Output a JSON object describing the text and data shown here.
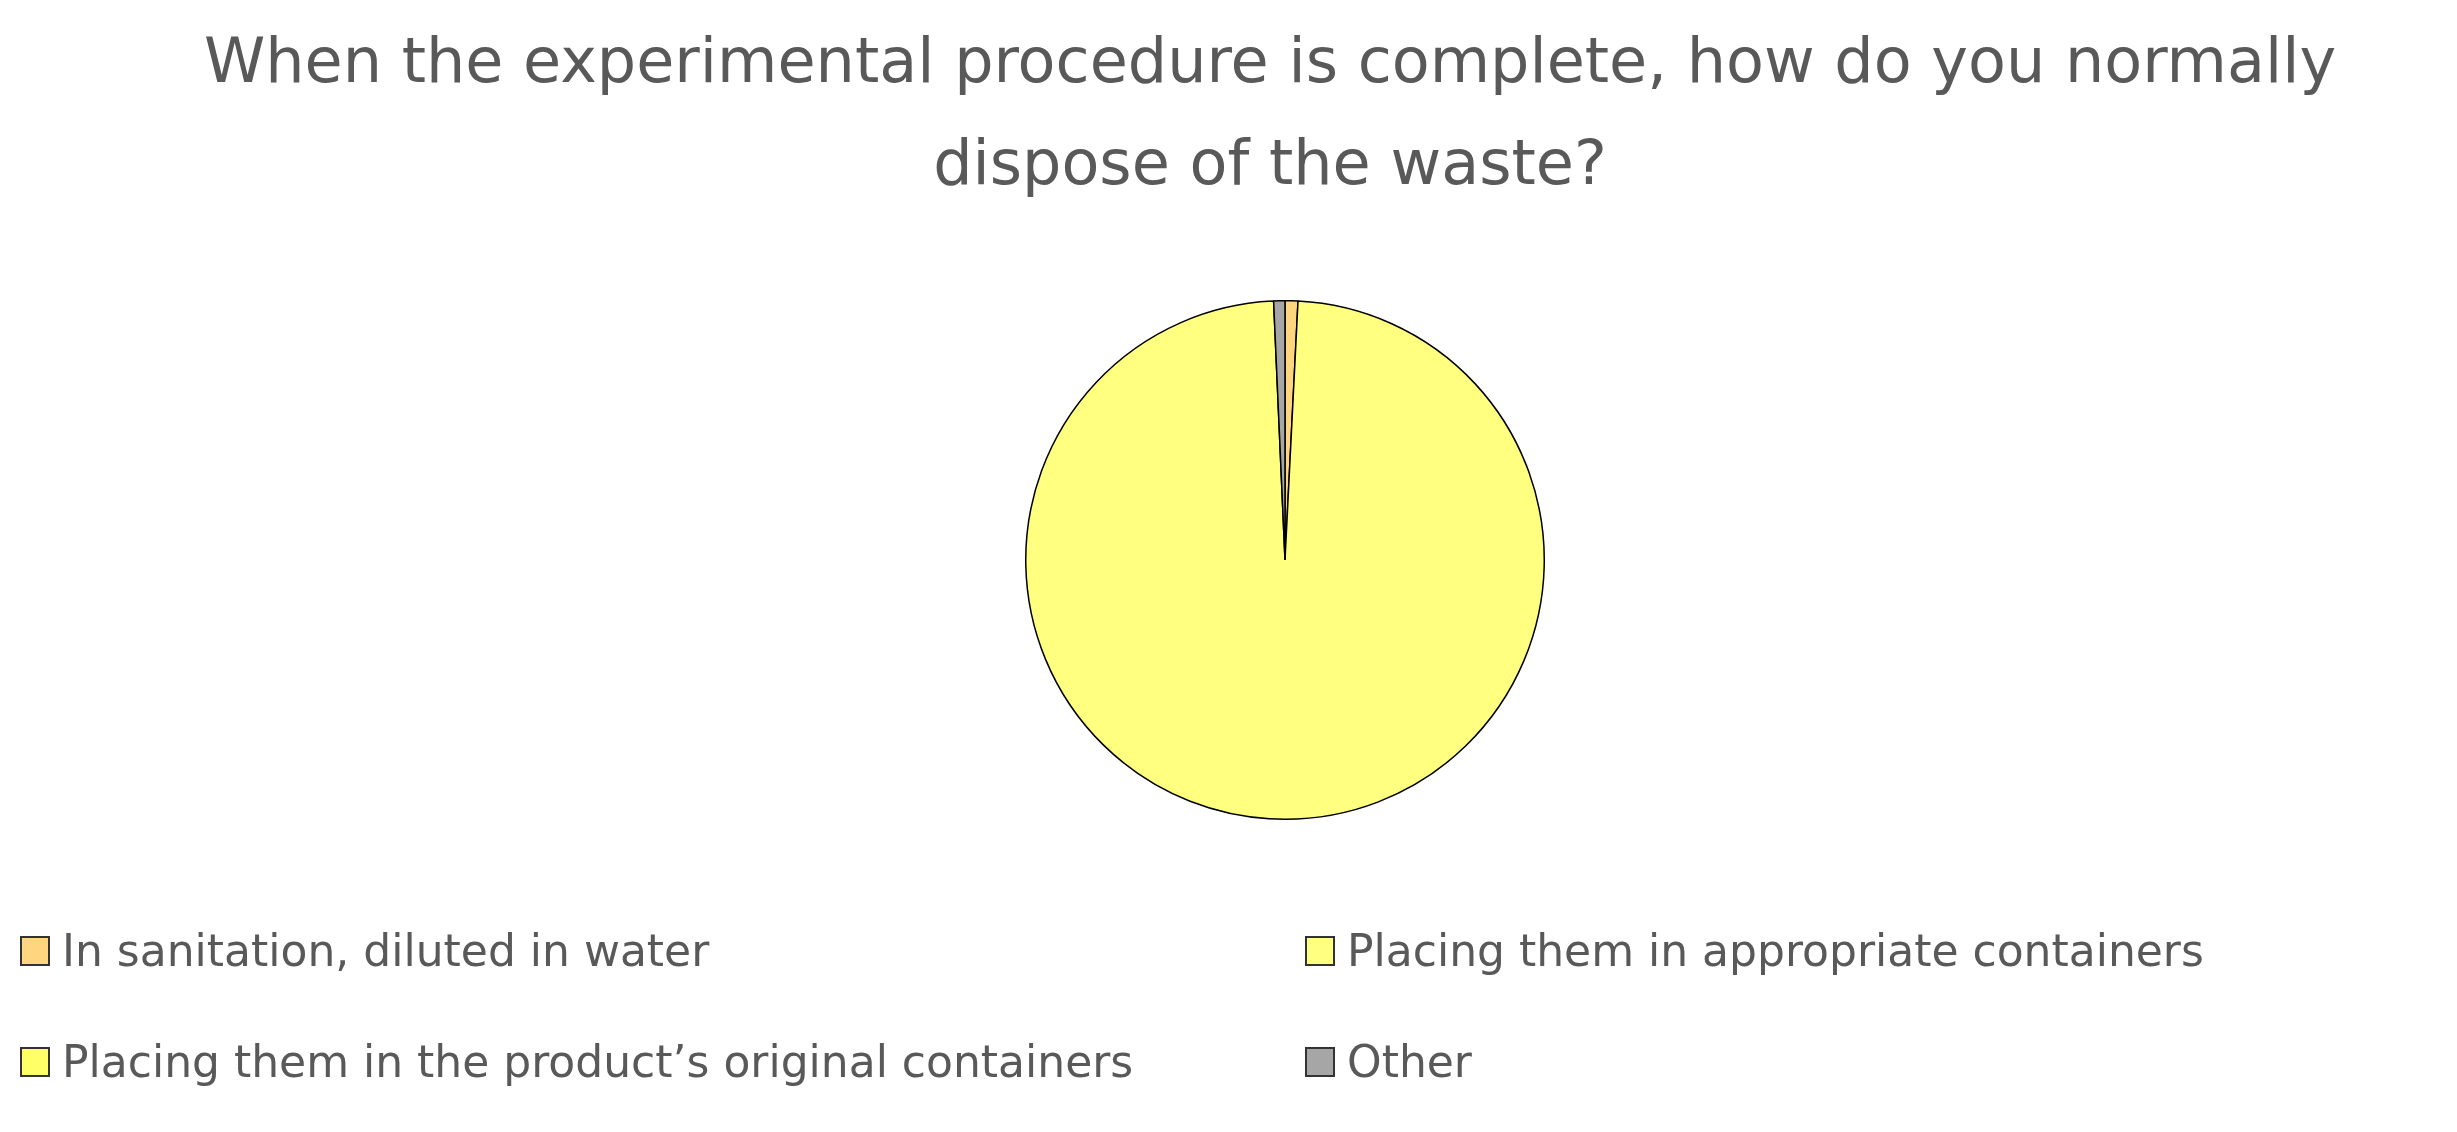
{
  "chart_data": {
    "type": "pie",
    "title": "When the experimental procedure is complete, how do you normally dispose of the waste?",
    "categories": [
      "In sanitation, diluted in water",
      "Placing them in appropriate containers",
      "Placing them in the product’s original containers",
      "Other"
    ],
    "values": [
      0.8,
      98.5,
      null,
      0.7
    ],
    "colors": [
      "#ffd580",
      "#ffff80",
      "#ffff66",
      "#a6a6a6"
    ],
    "legend": "bottom"
  }
}
